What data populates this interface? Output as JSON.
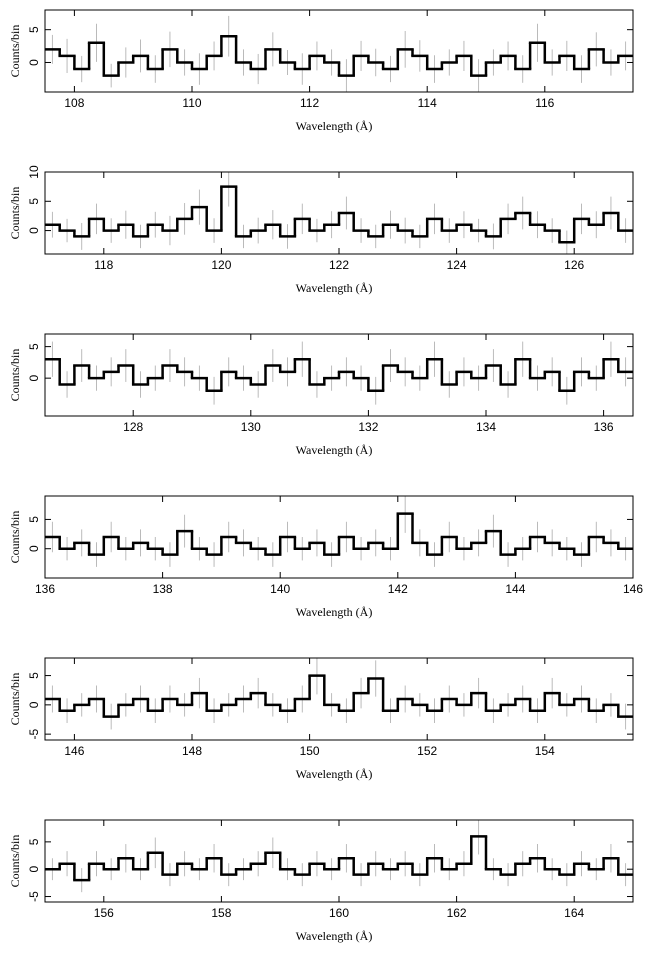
{
  "chart_data": [
    {
      "type": "histogram",
      "xlabel": "Wavelength (Å)",
      "ylabel": "Counts/bin",
      "xlim": [
        107.5,
        117.5
      ],
      "ylim": [
        -4.5,
        8
      ],
      "xticks": [
        108,
        110,
        112,
        114,
        116
      ],
      "yticks": [
        0,
        5
      ],
      "color": "#000000",
      "error_color": "#aaaaaa",
      "bins": [
        107.5,
        107.75,
        108,
        108.25,
        108.5,
        108.75,
        109,
        109.25,
        109.5,
        109.75,
        110,
        110.25,
        110.5,
        110.75,
        111,
        111.25,
        111.5,
        111.75,
        112,
        112.25,
        112.5,
        112.75,
        113,
        113.25,
        113.5,
        113.75,
        114,
        114.25,
        114.5,
        114.75,
        115,
        115.25,
        115.5,
        115.75,
        116,
        116.25,
        116.5,
        116.75,
        117,
        117.25,
        117.5
      ],
      "values": [
        2,
        1,
        -1,
        3,
        -2,
        0,
        1,
        -1,
        2,
        0,
        -1,
        1,
        4,
        0,
        -1,
        2,
        0,
        -1,
        1,
        0,
        -2,
        1,
        0,
        -1,
        2,
        1,
        -1,
        0,
        1,
        -2,
        0,
        1,
        -1,
        3,
        0,
        1,
        -1,
        2,
        0,
        1
      ],
      "errors": [
        2.2,
        2.6,
        2.0,
        2.9,
        1.8,
        2.3,
        2.5,
        2.1,
        2.7,
        2.0,
        2.4,
        2.2,
        3.1,
        2.0,
        2.3,
        2.6,
        1.9,
        2.4,
        2.2,
        2.0,
        2.5,
        2.3,
        2.1,
        2.0,
        2.8,
        2.4,
        2.1,
        2.0,
        2.3,
        2.5,
        2.0,
        2.2,
        2.1,
        2.9,
        2.0,
        2.3,
        2.1,
        2.6,
        2.0,
        2.2
      ]
    },
    {
      "type": "histogram",
      "xlabel": "Wavelength (Å)",
      "ylabel": "Counts/bin",
      "xlim": [
        117,
        127
      ],
      "ylim": [
        -4,
        10
      ],
      "xticks": [
        118,
        120,
        122,
        124,
        126
      ],
      "yticks": [
        0,
        5,
        10
      ],
      "color": "#000000",
      "error_color": "#aaaaaa",
      "bins": [
        117,
        117.25,
        117.5,
        117.75,
        118,
        118.25,
        118.5,
        118.75,
        119,
        119.25,
        119.5,
        119.75,
        120,
        120.25,
        120.5,
        120.75,
        121,
        121.25,
        121.5,
        121.75,
        122,
        122.25,
        122.5,
        122.75,
        123,
        123.25,
        123.5,
        123.75,
        124,
        124.25,
        124.5,
        124.75,
        125,
        125.25,
        125.5,
        125.75,
        126,
        126.25,
        126.5,
        126.75,
        127
      ],
      "values": [
        1,
        0,
        -1,
        2,
        0,
        1,
        -1,
        1,
        0,
        2,
        4,
        0,
        7.5,
        -1,
        0,
        1,
        -1,
        2,
        0,
        1,
        3,
        0,
        -1,
        1,
        0,
        -1,
        2,
        0,
        1,
        0,
        -1,
        2,
        3,
        1,
        0,
        -2,
        2,
        1,
        3,
        0
      ],
      "errors": [
        2.2,
        2.0,
        2.3,
        2.6,
        2.1,
        2.4,
        2.0,
        2.2,
        2.5,
        2.7,
        3.0,
        2.1,
        3.4,
        2.0,
        2.2,
        2.5,
        2.1,
        2.6,
        2.0,
        2.3,
        2.8,
        2.1,
        2.0,
        2.4,
        2.2,
        2.0,
        2.6,
        2.1,
        2.3,
        2.0,
        2.2,
        2.6,
        2.8,
        2.3,
        2.1,
        2.0,
        2.6,
        2.3,
        2.8,
        2.1
      ]
    },
    {
      "type": "histogram",
      "xlabel": "Wavelength (Å)",
      "ylabel": "Counts/bin",
      "xlim": [
        126.5,
        136.5
      ],
      "ylim": [
        -6,
        7
      ],
      "xticks": [
        128,
        130,
        132,
        134,
        136
      ],
      "yticks": [
        0,
        5
      ],
      "color": "#000000",
      "error_color": "#aaaaaa",
      "bins": [
        126.5,
        126.75,
        127,
        127.25,
        127.5,
        127.75,
        128,
        128.25,
        128.5,
        128.75,
        129,
        129.25,
        129.5,
        129.75,
        130,
        130.25,
        130.5,
        130.75,
        131,
        131.25,
        131.5,
        131.75,
        132,
        132.25,
        132.5,
        132.75,
        133,
        133.25,
        133.5,
        133.75,
        134,
        134.25,
        134.5,
        134.75,
        135,
        135.25,
        135.5,
        135.75,
        136,
        136.25,
        136.5
      ],
      "values": [
        3,
        -1,
        2,
        0,
        1,
        2,
        -1,
        0,
        2,
        1,
        0,
        -2,
        1,
        0,
        -1,
        2,
        1,
        3,
        -1,
        0,
        1,
        0,
        -2,
        2,
        1,
        0,
        3,
        -1,
        1,
        0,
        2,
        -1,
        3,
        0,
        1,
        -2,
        1,
        0,
        3,
        1
      ],
      "errors": [
        2.8,
        2.1,
        2.6,
        2.0,
        2.3,
        2.6,
        2.1,
        2.0,
        2.6,
        2.3,
        2.0,
        2.2,
        2.3,
        2.0,
        2.1,
        2.6,
        2.3,
        2.8,
        2.1,
        2.0,
        2.3,
        2.0,
        2.2,
        2.6,
        2.3,
        2.0,
        2.8,
        2.1,
        2.3,
        2.0,
        2.6,
        2.1,
        2.8,
        2.0,
        2.3,
        2.2,
        2.3,
        2.0,
        2.8,
        2.3
      ]
    },
    {
      "type": "histogram",
      "xlabel": "Wavelength (Å)",
      "ylabel": "Counts/bin",
      "xlim": [
        136,
        146
      ],
      "ylim": [
        -5,
        9
      ],
      "xticks": [
        136,
        138,
        140,
        142,
        144,
        146
      ],
      "yticks": [
        0,
        5
      ],
      "color": "#000000",
      "error_color": "#aaaaaa",
      "bins": [
        136,
        136.25,
        136.5,
        136.75,
        137,
        137.25,
        137.5,
        137.75,
        138,
        138.25,
        138.5,
        138.75,
        139,
        139.25,
        139.5,
        139.75,
        140,
        140.25,
        140.5,
        140.75,
        141,
        141.25,
        141.5,
        141.75,
        142,
        142.25,
        142.5,
        142.75,
        143,
        143.25,
        143.5,
        143.75,
        144,
        144.25,
        144.5,
        144.75,
        145,
        145.25,
        145.5,
        145.75,
        146
      ],
      "values": [
        2,
        0,
        1,
        -1,
        2,
        0,
        1,
        0,
        -1,
        3,
        0,
        -1,
        2,
        1,
        0,
        -1,
        2,
        0,
        1,
        -1,
        2,
        0,
        1,
        0,
        6,
        1,
        -1,
        2,
        0,
        1,
        3,
        -1,
        0,
        2,
        1,
        0,
        -1,
        2,
        1,
        0
      ],
      "errors": [
        2.6,
        2.0,
        2.3,
        2.1,
        2.6,
        2.0,
        2.3,
        2.0,
        2.1,
        2.8,
        2.0,
        2.1,
        2.6,
        2.3,
        2.0,
        2.1,
        2.6,
        2.0,
        2.3,
        2.1,
        2.6,
        2.0,
        2.3,
        2.0,
        3.3,
        2.3,
        2.1,
        2.6,
        2.0,
        2.3,
        2.8,
        2.1,
        2.0,
        2.6,
        2.3,
        2.0,
        2.1,
        2.6,
        2.3,
        2.0
      ]
    },
    {
      "type": "histogram",
      "xlabel": "Wavelength (Å)",
      "ylabel": "Counts/bin",
      "xlim": [
        145.5,
        155.5
      ],
      "ylim": [
        -6,
        8
      ],
      "xticks": [
        146,
        148,
        150,
        152,
        154
      ],
      "yticks": [
        -5,
        0,
        5
      ],
      "color": "#000000",
      "error_color": "#aaaaaa",
      "bins": [
        145.5,
        145.75,
        146,
        146.25,
        146.5,
        146.75,
        147,
        147.25,
        147.5,
        147.75,
        148,
        148.25,
        148.5,
        148.75,
        149,
        149.25,
        149.5,
        149.75,
        150,
        150.25,
        150.5,
        150.75,
        151,
        151.25,
        151.5,
        151.75,
        152,
        152.25,
        152.5,
        152.75,
        153,
        153.25,
        153.5,
        153.75,
        154,
        154.25,
        154.5,
        154.75,
        155,
        155.25,
        155.5
      ],
      "values": [
        1,
        -1,
        0,
        1,
        -2,
        0,
        1,
        -1,
        1,
        0,
        2,
        -1,
        0,
        1,
        2,
        0,
        -1,
        1,
        5,
        0,
        -1,
        2,
        4.5,
        -1,
        1,
        0,
        -1,
        1,
        0,
        2,
        -1,
        0,
        1,
        -1,
        2,
        0,
        1,
        -1,
        0,
        -2
      ],
      "errors": [
        2.3,
        2.1,
        2.0,
        2.3,
        2.2,
        2.0,
        2.3,
        2.1,
        2.3,
        2.0,
        2.6,
        2.1,
        2.0,
        2.3,
        2.6,
        2.0,
        2.1,
        2.3,
        3.2,
        2.0,
        2.1,
        2.6,
        3.1,
        2.1,
        2.3,
        2.0,
        2.1,
        2.3,
        2.0,
        2.6,
        2.1,
        2.0,
        2.3,
        2.1,
        2.6,
        2.0,
        2.3,
        2.1,
        2.0,
        2.2
      ]
    },
    {
      "type": "histogram",
      "xlabel": "Wavelength (Å)",
      "ylabel": "Counts/bin",
      "xlim": [
        155,
        165
      ],
      "ylim": [
        -6,
        9
      ],
      "xticks": [
        156,
        158,
        160,
        162,
        164
      ],
      "yticks": [
        -5,
        0,
        5
      ],
      "color": "#000000",
      "error_color": "#aaaaaa",
      "bins": [
        155,
        155.25,
        155.5,
        155.75,
        156,
        156.25,
        156.5,
        156.75,
        157,
        157.25,
        157.5,
        157.75,
        158,
        158.25,
        158.5,
        158.75,
        159,
        159.25,
        159.5,
        159.75,
        160,
        160.25,
        160.5,
        160.75,
        161,
        161.25,
        161.5,
        161.75,
        162,
        162.25,
        162.5,
        162.75,
        163,
        163.25,
        163.5,
        163.75,
        164,
        164.25,
        164.5,
        164.75,
        165
      ],
      "values": [
        0,
        1,
        -2,
        1,
        0,
        2,
        0,
        3,
        -1,
        1,
        0,
        2,
        -1,
        0,
        1,
        3,
        0,
        -1,
        1,
        0,
        2,
        -1,
        1,
        0,
        1,
        -1,
        2,
        0,
        1,
        6,
        0,
        -1,
        1,
        2,
        0,
        -1,
        1,
        0,
        2,
        -1
      ],
      "errors": [
        2.0,
        2.3,
        2.2,
        2.3,
        2.0,
        2.6,
        2.0,
        2.8,
        2.1,
        2.3,
        2.0,
        2.6,
        2.1,
        2.0,
        2.3,
        2.8,
        2.0,
        2.1,
        2.3,
        2.0,
        2.6,
        2.1,
        2.3,
        2.0,
        2.3,
        2.1,
        2.6,
        2.0,
        2.3,
        3.3,
        2.0,
        2.1,
        2.3,
        2.6,
        2.0,
        2.1,
        2.3,
        2.0,
        2.6,
        2.1
      ]
    }
  ]
}
